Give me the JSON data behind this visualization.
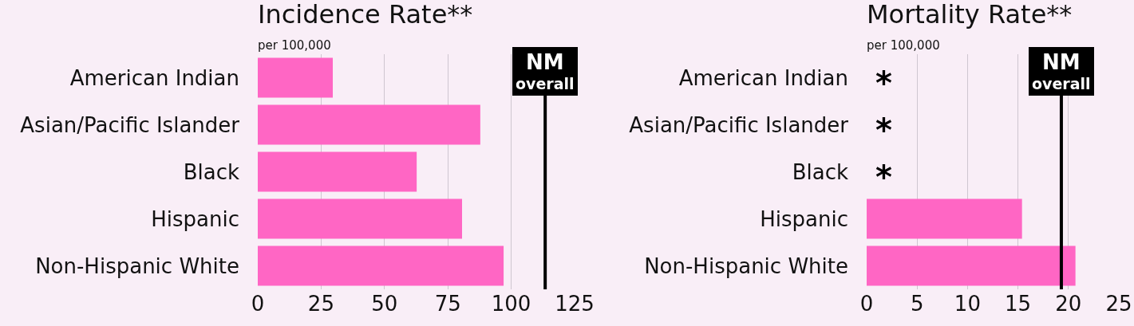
{
  "chart_data": [
    {
      "type": "bar",
      "orientation": "horizontal",
      "title": "Incidence Rate**",
      "subtitle": "per 100,000",
      "categories": [
        "American Indian",
        "Asian/Pacific Islander",
        "Black",
        "Hispanic",
        "Non-Hispanic White"
      ],
      "series": [
        {
          "color": "#ff66c4",
          "values": [
            29.6,
            87.8,
            62.7,
            80.6,
            97
          ]
        }
      ],
      "xlim": [
        0,
        125
      ],
      "xticks": [
        0,
        25,
        50,
        75,
        100,
        125
      ],
      "grid": "x",
      "ref_lines": [
        {
          "axis": "x",
          "value": 113.4,
          "label": "NM\noverall",
          "color": "#000000"
        }
      ]
    },
    {
      "type": "bar",
      "orientation": "horizontal",
      "title": "Mortality Rate**",
      "subtitle": "per 100,000",
      "categories": [
        "American Indian",
        "Asian/Pacific Islander",
        "Black",
        "Hispanic",
        "Non-Hispanic White"
      ],
      "series": [
        {
          "color": "#ff66c4",
          "values": [
            null,
            null,
            null,
            15.4,
            20.7
          ]
        }
      ],
      "xlim": [
        0,
        25
      ],
      "xticks": [
        0,
        5,
        10,
        15,
        20,
        25
      ],
      "grid": "x",
      "annotations": [
        "*",
        "*",
        "*"
      ],
      "ref_lines": [
        {
          "axis": "x",
          "value": 19.3,
          "label": "NM\noverall",
          "color": "#000000"
        }
      ]
    }
  ]
}
